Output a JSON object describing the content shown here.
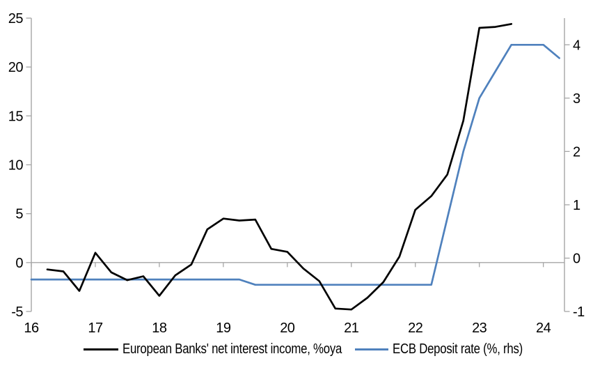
{
  "chart_data": {
    "type": "line",
    "title": "",
    "grid": "zero-line-only",
    "legend_position": "bottom-center",
    "x_axis": {
      "range": [
        16,
        24.33
      ],
      "ticks": [
        16,
        17,
        18,
        19,
        20,
        21,
        22,
        23,
        24
      ]
    },
    "left_axis": {
      "label": "",
      "range": [
        -5,
        25
      ],
      "ticks": [
        -5,
        0,
        5,
        10,
        15,
        20,
        25
      ]
    },
    "right_axis": {
      "label": "",
      "range": [
        -1,
        4.5
      ],
      "ticks": [
        -1,
        0,
        1,
        2,
        3,
        4
      ]
    },
    "series": [
      {
        "name": "European Banks' net interest income, %oya",
        "axis": "left",
        "color": "#000000",
        "x": [
          16.25,
          16.5,
          16.75,
          17,
          17.25,
          17.5,
          17.75,
          18,
          18.25,
          18.5,
          18.75,
          19,
          19.25,
          19.5,
          19.75,
          20,
          20.25,
          20.5,
          20.75,
          21,
          21.25,
          21.5,
          21.75,
          22,
          22.25,
          22.5,
          22.75,
          23,
          23.25,
          23.5
        ],
        "values": [
          -0.7,
          -0.9,
          -2.9,
          1.0,
          -1.0,
          -1.8,
          -1.4,
          -3.4,
          -1.3,
          -0.2,
          3.4,
          4.5,
          4.3,
          4.4,
          1.4,
          1.1,
          -0.6,
          -1.9,
          -4.7,
          -4.8,
          -3.6,
          -2.0,
          0.6,
          5.4,
          6.8,
          9.0,
          14.5,
          24.0,
          24.1,
          24.4
        ]
      },
      {
        "name": "ECB Deposit rate (%, rhs)",
        "axis": "right",
        "color": "#4f81bd",
        "x": [
          16,
          16.25,
          16.5,
          16.75,
          17,
          17.25,
          17.5,
          17.75,
          18,
          18.25,
          18.5,
          18.75,
          19,
          19.25,
          19.5,
          19.75,
          20,
          20.25,
          20.5,
          20.75,
          21,
          21.25,
          21.5,
          21.75,
          22,
          22.25,
          22.5,
          22.75,
          23,
          23.25,
          23.5,
          23.75,
          24,
          24.25
        ],
        "values": [
          -0.4,
          -0.4,
          -0.4,
          -0.4,
          -0.4,
          -0.4,
          -0.4,
          -0.4,
          -0.4,
          -0.4,
          -0.4,
          -0.4,
          -0.4,
          -0.4,
          -0.5,
          -0.5,
          -0.5,
          -0.5,
          -0.5,
          -0.5,
          -0.5,
          -0.5,
          -0.5,
          -0.5,
          -0.5,
          -0.5,
          0.75,
          2.0,
          3.0,
          3.5,
          4.0,
          4.0,
          4.0,
          3.75
        ]
      }
    ]
  },
  "colors": {
    "axis": "#a6a6a6",
    "text": "#000000",
    "background": "#ffffff",
    "accent_blue": "#4f81bd"
  }
}
